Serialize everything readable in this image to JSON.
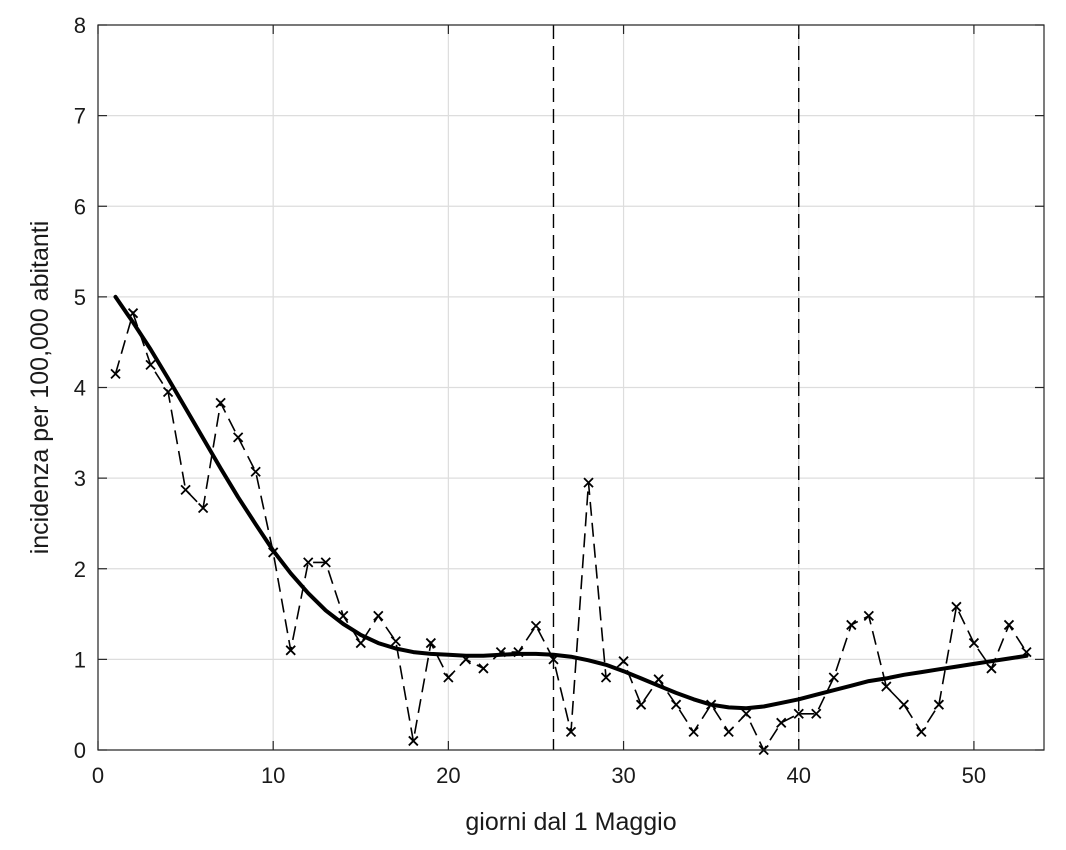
{
  "chart_data": {
    "type": "line",
    "title": "",
    "xlabel": "giorni dal 1 Maggio",
    "ylabel": "incidenza per 100,000 abitanti",
    "xlim": [
      0,
      54
    ],
    "ylim": [
      0,
      8
    ],
    "xticks": [
      0,
      10,
      20,
      30,
      40,
      50
    ],
    "yticks": [
      0,
      1,
      2,
      3,
      4,
      5,
      6,
      7,
      8
    ],
    "grid": true,
    "legend": "none",
    "vertical_lines": [
      26,
      40
    ],
    "series": [
      {
        "style": "dashed-with-x-markers",
        "color": "#000000",
        "x": [
          1,
          2,
          3,
          4,
          5,
          6,
          7,
          8,
          9,
          10,
          11,
          12,
          13,
          14,
          15,
          16,
          17,
          18,
          19,
          20,
          21,
          22,
          23,
          24,
          25,
          26,
          27,
          28,
          29,
          30,
          31,
          32,
          33,
          34,
          35,
          36,
          37,
          38,
          39,
          40,
          41,
          42,
          43,
          44,
          45,
          46,
          47,
          48,
          49,
          50,
          51,
          52,
          53
        ],
        "y": [
          4.15,
          4.82,
          4.25,
          3.95,
          2.87,
          2.67,
          3.83,
          3.45,
          3.07,
          2.18,
          1.1,
          2.07,
          2.07,
          1.48,
          1.18,
          1.48,
          1.2,
          0.1,
          1.18,
          0.8,
          1.0,
          0.9,
          1.08,
          1.08,
          1.37,
          1.0,
          0.2,
          2.95,
          0.8,
          0.98,
          0.5,
          0.78,
          0.5,
          0.2,
          0.5,
          0.2,
          0.4,
          0.0,
          0.3,
          0.4,
          0.4,
          0.8,
          1.38,
          1.48,
          0.7,
          0.5,
          0.2,
          0.5,
          1.58,
          1.18,
          0.9,
          1.38,
          1.08
        ]
      },
      {
        "style": "solid-thick",
        "color": "#000000",
        "x": [
          1,
          2,
          3,
          4,
          5,
          6,
          7,
          8,
          9,
          10,
          11,
          12,
          13,
          14,
          15,
          16,
          17,
          18,
          19,
          20,
          21,
          22,
          23,
          24,
          25,
          26,
          27,
          28,
          29,
          30,
          31,
          32,
          33,
          34,
          35,
          36,
          37,
          38,
          39,
          40,
          41,
          42,
          43,
          44,
          45,
          46,
          47,
          48,
          49,
          50,
          51,
          52,
          53
        ],
        "y": [
          5.0,
          4.72,
          4.42,
          4.1,
          3.77,
          3.44,
          3.11,
          2.79,
          2.49,
          2.2,
          1.95,
          1.73,
          1.54,
          1.39,
          1.27,
          1.18,
          1.12,
          1.08,
          1.06,
          1.05,
          1.04,
          1.04,
          1.05,
          1.06,
          1.06,
          1.05,
          1.03,
          0.99,
          0.94,
          0.87,
          0.79,
          0.71,
          0.63,
          0.56,
          0.5,
          0.47,
          0.46,
          0.48,
          0.52,
          0.56,
          0.61,
          0.66,
          0.71,
          0.76,
          0.79,
          0.83,
          0.86,
          0.89,
          0.92,
          0.95,
          0.98,
          1.01,
          1.04
        ]
      }
    ]
  }
}
